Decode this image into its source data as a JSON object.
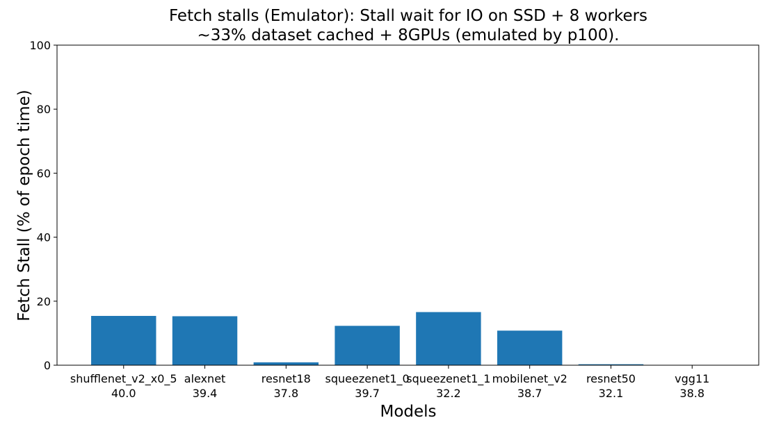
{
  "chart_data": {
    "type": "bar",
    "title_line1": "Fetch stalls (Emulator): Stall wait for IO on SSD + 8 workers",
    "title_line2": "~33% dataset cached + 8GPUs (emulated by p100).",
    "xlabel": "Models",
    "ylabel": "Fetch Stall (% of epoch time)",
    "ylim": [
      0,
      100
    ],
    "yticks": [
      0,
      20,
      40,
      60,
      80,
      100
    ],
    "grid": false,
    "legend": "none",
    "bar_color": "#1f77b4",
    "categories": [
      "shufflenet_v2_x0_5",
      "alexnet",
      "resnet18",
      "squeezenet1_0",
      "squeezenet1_1",
      "mobilenet_v2",
      "resnet50",
      "vgg11"
    ],
    "category_sublabels": [
      "40.0",
      "39.4",
      "37.8",
      "39.7",
      "32.2",
      "38.7",
      "32.1",
      "38.8"
    ],
    "values": [
      15.4,
      15.3,
      0.9,
      12.3,
      16.6,
      10.8,
      0.3,
      0.0
    ]
  }
}
